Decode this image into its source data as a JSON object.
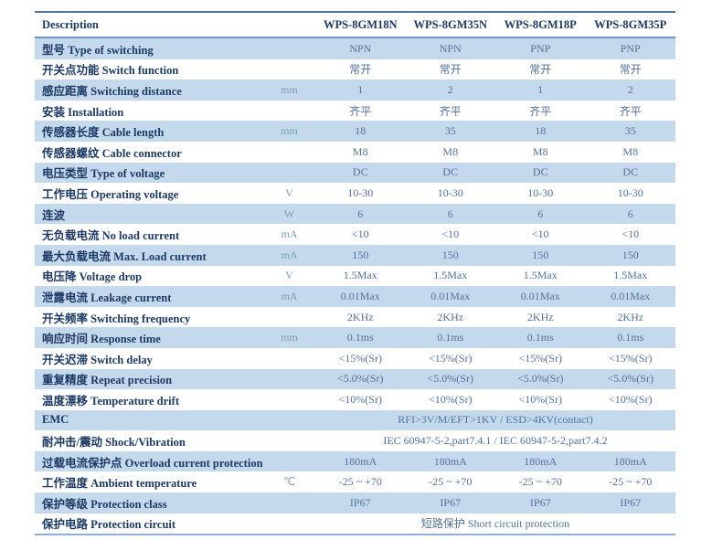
{
  "table": {
    "colors": {
      "navy": "#1d3a66",
      "value": "#53729c",
      "unit": "#7aa0b5",
      "row_blue": "#c5d9ec",
      "line_top": "#4f739e",
      "line_header": "#6f94bb",
      "line_bottom": "#8fb0d3"
    },
    "header": {
      "description_label": "Description",
      "unit_label": "",
      "columns": [
        "WPS-8GM18N",
        "WPS-8GM35N",
        "WPS-8GM18P",
        "WPS-8GM35P"
      ]
    },
    "rows": [
      {
        "label": "型号  Type of switching",
        "unit": "",
        "values": [
          "NPN",
          "NPN",
          "PNP",
          "PNP"
        ]
      },
      {
        "label": "开关点功能  Switch function",
        "unit": "",
        "values": [
          "常开",
          "常开",
          "常开",
          "常开"
        ]
      },
      {
        "label": "感应距离  Switching distance",
        "unit": "mm",
        "values": [
          "1",
          "2",
          "1",
          "2"
        ]
      },
      {
        "label": "安装  Installation",
        "unit": "",
        "values": [
          "齐平",
          "齐平",
          "齐平",
          "齐平"
        ]
      },
      {
        "label": "传感器长度 Cable length",
        "unit": "mm",
        "values": [
          "18",
          "35",
          "18",
          "35"
        ]
      },
      {
        "label": "传感器螺纹 Cable connector",
        "unit": "",
        "values": [
          "M8",
          "M8",
          "M8",
          "M8"
        ]
      },
      {
        "label": "电压类型  Type of voltage",
        "unit": "",
        "values": [
          "DC",
          "DC",
          "DC",
          "DC"
        ]
      },
      {
        "label": "工作电压 Operating voltage",
        "unit": "V",
        "values": [
          "10-30",
          "10-30",
          "10-30",
          "10-30"
        ]
      },
      {
        "label": "连波",
        "unit": "W",
        "values": [
          "6",
          "6",
          "6",
          "6"
        ]
      },
      {
        "label": "无负载电流 No load current",
        "unit": "mA",
        "values": [
          "<10",
          "<10",
          "<10",
          "<10"
        ]
      },
      {
        "label": "最大负载电流  Max. Load current",
        "unit": "mA",
        "values": [
          "150",
          "150",
          "150",
          "150"
        ]
      },
      {
        "label": "电压降  Voltage drop",
        "unit": "V",
        "values": [
          "1.5Max",
          "1.5Max",
          "1.5Max",
          "1.5Max"
        ]
      },
      {
        "label": "泄露电流  Leakage current",
        "unit": "mA",
        "values": [
          "0.01Max",
          "0.01Max",
          "0.01Max",
          "0.01Max"
        ]
      },
      {
        "label": "开关频率  Switching frequency",
        "unit": "",
        "values": [
          "2KHz",
          "2KHz",
          "2KHz",
          "2KHz"
        ]
      },
      {
        "label": "响应时间  Response time",
        "unit": "mm",
        "values": [
          "0.1ms",
          "0.1ms",
          "0.1ms",
          "0.1ms"
        ]
      },
      {
        "label": "开关迟滞  Switch delay",
        "unit": "",
        "values": [
          "<15%(Sr)",
          "<15%(Sr)",
          "<15%(Sr)",
          "<15%(Sr)"
        ]
      },
      {
        "label": "重复精度  Repeat precision",
        "unit": "",
        "values": [
          "<5.0%(Sr)",
          "<5.0%(Sr)",
          "<5.0%(Sr)",
          "<5.0%(Sr)"
        ]
      },
      {
        "label": "温度漂移  Temperature drift",
        "unit": "",
        "values": [
          "<10%(Sr)",
          "<10%(Sr)",
          "<10%(Sr)",
          "<10%(Sr)"
        ]
      },
      {
        "label": "EMC",
        "unit": "",
        "span": "RFI>3V/M/EFT>1KV / ESD>4KV(contact)"
      },
      {
        "label": "耐冲击/震动  Shock/Vibration",
        "unit": "",
        "span": "IEC 60947-5-2,part7.4.1 / IEC 60947-5-2,part7.4.2"
      },
      {
        "label": "过载电流保护点  Overload current protection",
        "unit": "",
        "values": [
          "180mA",
          "180mA",
          "180mA",
          "180mA"
        ]
      },
      {
        "label": "工作温度 Ambient temperature",
        "unit": "℃",
        "values": [
          "-25 ~ +70",
          "-25 ~ +70",
          "-25 ~ +70",
          "-25 ~ +70"
        ]
      },
      {
        "label": "保护等级  Protection class",
        "unit": "",
        "values": [
          "IP67",
          "IP67",
          "IP67",
          "IP67"
        ]
      },
      {
        "label": "保护电路  Protection circuit",
        "unit": "",
        "span": "短路保护  Short circuit protection"
      }
    ]
  }
}
